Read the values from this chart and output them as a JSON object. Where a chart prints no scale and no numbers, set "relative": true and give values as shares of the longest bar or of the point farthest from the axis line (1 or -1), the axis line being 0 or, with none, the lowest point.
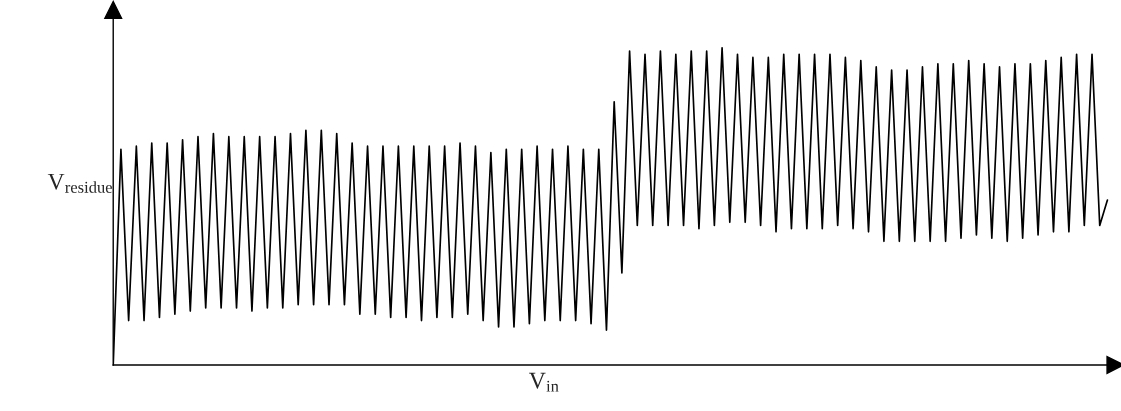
{
  "chart_data": {
    "type": "line",
    "relative": true,
    "xlabel": "V$_{in}$",
    "ylabel": "V$_{residue}$",
    "grid": false,
    "legend": false,
    "marker": "none",
    "line_style": "solid",
    "categories": [
      null,
      null,
      null,
      null,
      null,
      null,
      null,
      null,
      null,
      null,
      null,
      null,
      null,
      null,
      null,
      null,
      null,
      null,
      null,
      null,
      null,
      null,
      null,
      null,
      null,
      null,
      null,
      null,
      null,
      null,
      null,
      null,
      null,
      null,
      null,
      null,
      null,
      null,
      null,
      null,
      null,
      null,
      null,
      null,
      null,
      null,
      null,
      null,
      null,
      null,
      null,
      null,
      null,
      null,
      null,
      null,
      null,
      null,
      null,
      null,
      null,
      null,
      null,
      null,
      null,
      null,
      null,
      null,
      null,
      null,
      null,
      null,
      null,
      null,
      null,
      null,
      null,
      null,
      null,
      null,
      null,
      null,
      null,
      null,
      null,
      null,
      null,
      null,
      null,
      null,
      null,
      null,
      null,
      null,
      null,
      null,
      null,
      null,
      null,
      null,
      null,
      null,
      null,
      null,
      null,
      null,
      null,
      null,
      null,
      null,
      null,
      null,
      null,
      null,
      null,
      null,
      null,
      null,
      null,
      null,
      null,
      null,
      null,
      null,
      null,
      null,
      null,
      null,
      null,
      null
    ],
    "series": [
      {
        "color": "#000000",
        "values": [
          0,
          0.68,
          0.14,
          0.69,
          0.14,
          0.7,
          0.15,
          0.7,
          0.16,
          0.71,
          0.17,
          0.72,
          0.18,
          0.73,
          0.18,
          0.72,
          0.18,
          0.72,
          0.17,
          0.72,
          0.18,
          0.72,
          0.18,
          0.73,
          0.19,
          0.74,
          0.19,
          0.74,
          0.19,
          0.73,
          0.19,
          0.7,
          0.16,
          0.69,
          0.16,
          0.69,
          0.15,
          0.69,
          0.15,
          0.69,
          0.14,
          0.69,
          0.15,
          0.69,
          0.15,
          0.7,
          0.16,
          0.69,
          0.14,
          0.67,
          0.12,
          0.68,
          0.12,
          0.68,
          0.13,
          0.69,
          0.14,
          0.68,
          0.14,
          0.69,
          0.14,
          0.68,
          0.13,
          0.68,
          0.11,
          0.83,
          0.29,
          0.99,
          0.44,
          0.98,
          0.44,
          0.99,
          0.44,
          0.98,
          0.44,
          0.99,
          0.43,
          0.99,
          0.44,
          1.0,
          0.45,
          0.98,
          0.45,
          0.97,
          0.44,
          0.97,
          0.42,
          0.98,
          0.43,
          0.98,
          0.43,
          0.98,
          0.43,
          0.98,
          0.44,
          0.97,
          0.43,
          0.96,
          0.42,
          0.94,
          0.39,
          0.93,
          0.39,
          0.93,
          0.39,
          0.94,
          0.39,
          0.95,
          0.39,
          0.95,
          0.4,
          0.96,
          0.41,
          0.95,
          0.4,
          0.94,
          0.39,
          0.95,
          0.4,
          0.95,
          0.41,
          0.96,
          0.42,
          0.97,
          0.42,
          0.98,
          0.44,
          0.98,
          0.44,
          0.52
        ]
      }
    ]
  }
}
